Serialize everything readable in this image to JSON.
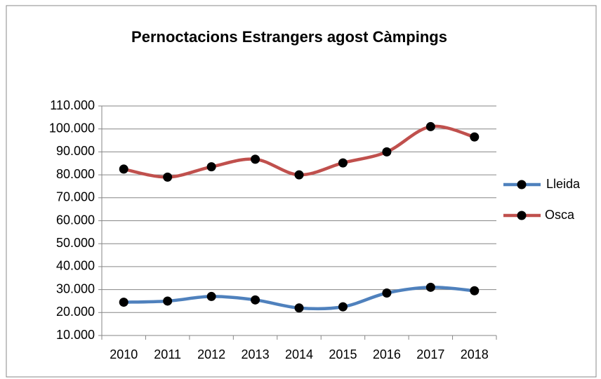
{
  "chart_data": {
    "type": "line",
    "title": "Pernoctacions Estrangers agost Càmpings",
    "categories": [
      "2010",
      "2011",
      "2012",
      "2013",
      "2014",
      "2015",
      "2016",
      "2017",
      "2018"
    ],
    "series": [
      {
        "name": "Lleida",
        "color": "#4f81bd",
        "values": [
          24500,
          25000,
          27000,
          25500,
          22000,
          22500,
          28500,
          31000,
          29500
        ]
      },
      {
        "name": "Osca",
        "color": "#c0504d",
        "values": [
          82500,
          79000,
          83500,
          86800,
          80000,
          85200,
          90000,
          101000,
          96500
        ]
      }
    ],
    "ylim": [
      10000,
      110000
    ],
    "yticks": [
      {
        "value": 10000,
        "label": "10.000"
      },
      {
        "value": 20000,
        "label": "20.000"
      },
      {
        "value": 30000,
        "label": "30.000"
      },
      {
        "value": 40000,
        "label": "40.000"
      },
      {
        "value": 50000,
        "label": "50.000"
      },
      {
        "value": 60000,
        "label": "60.000"
      },
      {
        "value": 70000,
        "label": "70.000"
      },
      {
        "value": 80000,
        "label": "80.000"
      },
      {
        "value": 90000,
        "label": "90.000"
      },
      {
        "value": 100000,
        "label": "100.000"
      },
      {
        "value": 110000,
        "label": "110.000"
      }
    ],
    "grid": true,
    "smooth": true,
    "marker_color": "#000000",
    "legend": "right"
  }
}
